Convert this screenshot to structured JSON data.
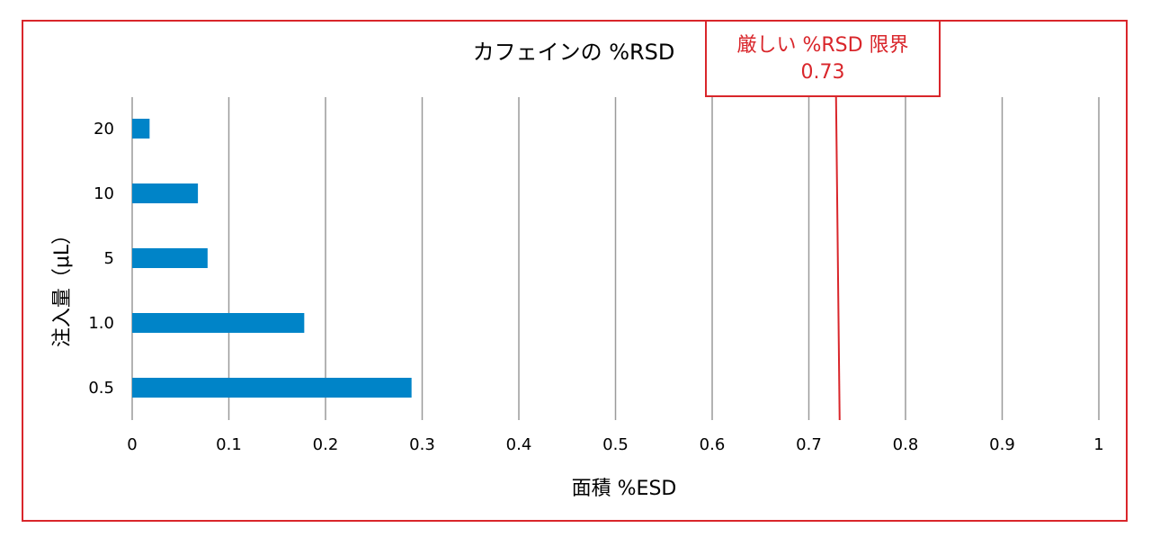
{
  "chart_data": {
    "type": "bar",
    "orientation": "horizontal",
    "title": "カフェインの %RSD",
    "xlabel": "面積 %ESD",
    "ylabel": "注入量（μL）",
    "categories": [
      "20",
      "10",
      "5",
      "1.0",
      "0.5"
    ],
    "values": [
      0.018,
      0.068,
      0.078,
      0.178,
      0.289
    ],
    "xlim": [
      0,
      1
    ],
    "xticks": [
      "0",
      "0.1",
      "0.2",
      "0.3",
      "0.4",
      "0.5",
      "0.6",
      "0.7",
      "0.8",
      "0.9",
      "1"
    ],
    "grid": "vertical",
    "bar_color": "#0084c8",
    "annotation": {
      "line1": "厳しい %RSD 限界",
      "line2": "0.73",
      "value": 0.73,
      "color": "#d9262b"
    }
  }
}
